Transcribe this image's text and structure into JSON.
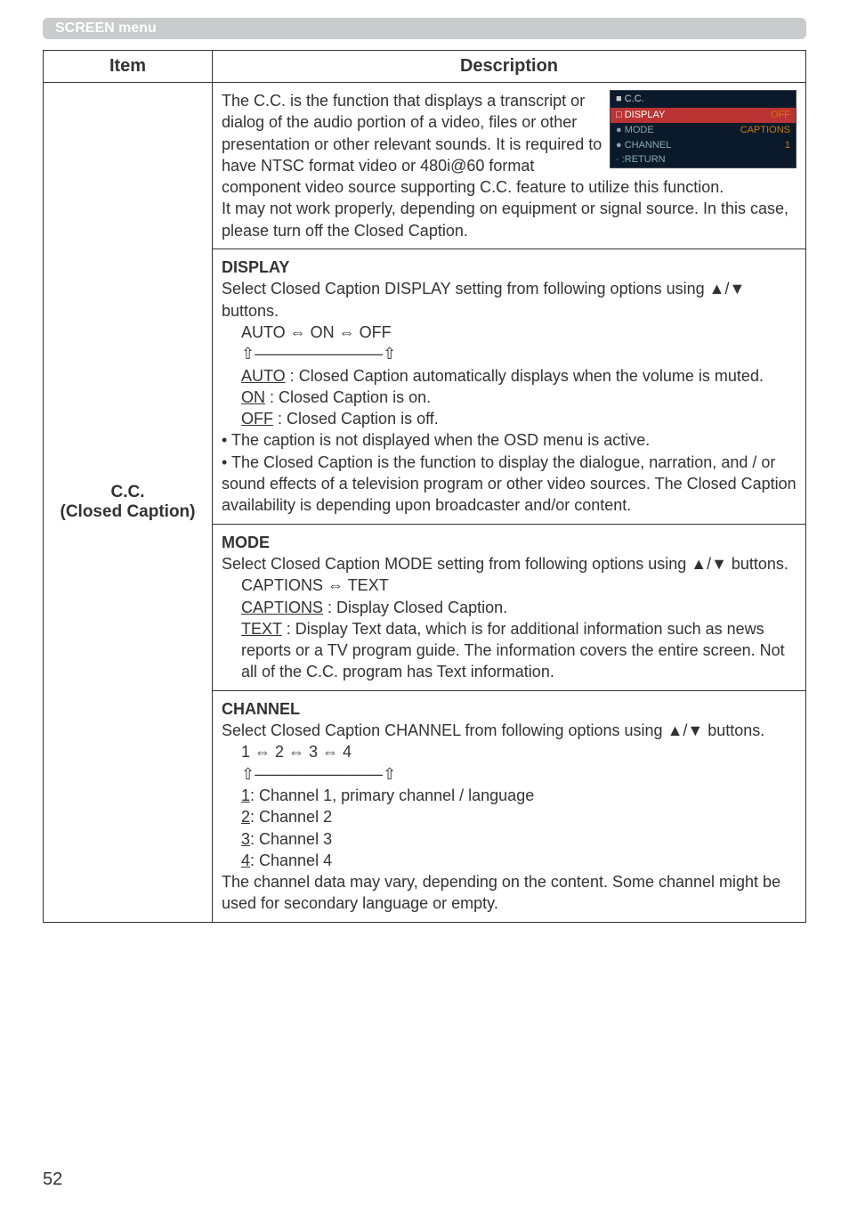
{
  "banner": {
    "label": "SCREEN menu"
  },
  "table": {
    "header_item": "Item",
    "header_desc": "Description",
    "item_label_1": "C.C.",
    "item_label_2": "(Closed Caption)"
  },
  "intro": {
    "p1": "The C.C. is the function that displays a transcript or dialog of the audio portion of a video, files or other presentation or other relevant sounds. It is required to have NTSC format video or 480i@60 format component video source supporting C.C. feature to utilize this function.",
    "p2": "It may not work properly, depending on equipment or signal source. In this case, please turn off the Closed Caption."
  },
  "osd": {
    "title": "■ C.C.",
    "r1a": "□ DISPLAY",
    "r1b": "OFF",
    "r2a": "● MODE",
    "r2b": "CAPTIONS",
    "r3a": "● CHANNEL",
    "r3b": "1",
    "r4a": "· :RETURN"
  },
  "display": {
    "head": "DISPLAY",
    "lead": "Select Closed Caption DISPLAY setting from following options using ▲/▼ buttons.",
    "cycle": "AUTO ⇔ ON ⇔ OFF",
    "auto_l": "AUTO",
    "auto_r": " : Closed Caption automatically displays when the volume is muted.",
    "on_l": "ON",
    "on_r": " : Closed Caption is on.",
    "off_l": "OFF",
    "off_r": " : Closed Caption is off.",
    "b1": "• The caption is not displayed when the OSD menu is active.",
    "b2": "• The Closed Caption is the function to display the dialogue, narration, and / or sound effects of a television program or other video sources. The Closed Caption availability is depending upon broadcaster and/or content."
  },
  "mode": {
    "head": "MODE",
    "lead": "Select Closed Caption MODE setting from following options using ▲/▼ buttons.",
    "cycle": "CAPTIONS ⇔ TEXT",
    "cap_l": "CAPTIONS",
    "cap_r": " : Display Closed Caption.",
    "txt_l": "TEXT",
    "txt_r": " : Display Text data, which is for additional information such as news reports or a TV program guide. The information covers the entire screen. Not all of the C.C. program has Text information."
  },
  "channel": {
    "head": "CHANNEL",
    "lead": "Select Closed Caption CHANNEL from following options using ▲/▼ buttons.",
    "cycle": "1 ⇔ 2 ⇔ 3 ⇔ 4",
    "c1l": "1",
    "c1r": ": Channel 1, primary channel / language",
    "c2l": "2",
    "c2r": ": Channel 2",
    "c3l": "3",
    "c3r": ": Channel 3",
    "c4l": "4",
    "c4r": ": Channel 4",
    "note": "The channel data may vary, depending on the content. Some channel might be used for secondary language or empty."
  },
  "arrows": "⇧――――――――⇧",
  "page": "52"
}
